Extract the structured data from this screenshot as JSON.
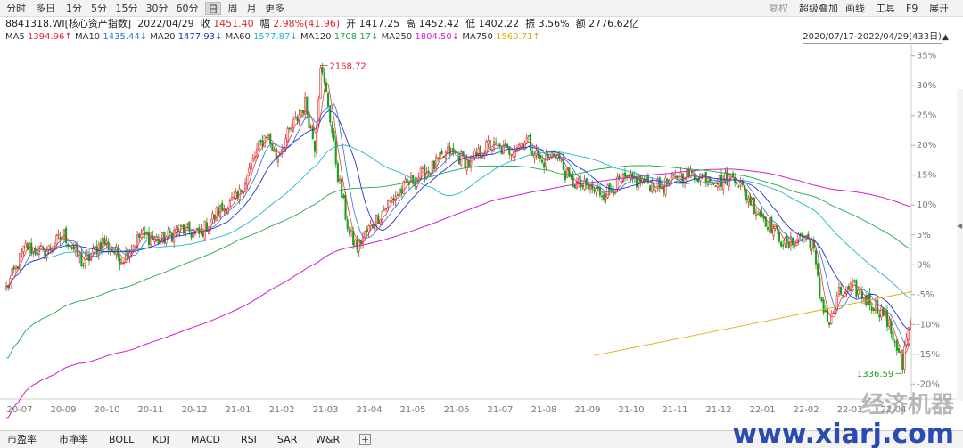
{
  "toolbar": {
    "periods": [
      "分时",
      "多日",
      "1分",
      "5分",
      "15分",
      "30分",
      "60分",
      "日",
      "周",
      "月",
      "更多"
    ],
    "active_period": "日",
    "right_tools": [
      "复权",
      "超级叠加",
      "画线",
      "工具",
      "F9",
      "展开"
    ]
  },
  "info": {
    "code_name": "8841318.WI[核心资产指数]",
    "date": "2022/04/29",
    "close_label": "收",
    "close": "1451.40",
    "change_label": "幅",
    "change": "2.98%(41.96)",
    "open_label": "开",
    "open": "1417.25",
    "high_label": "高",
    "high": "1452.42",
    "low_label": "低",
    "low": "1402.22",
    "amp_label": "振",
    "amp": "3.56%",
    "amount_label": "额",
    "amount": "2776.62亿"
  },
  "ma_legend": [
    {
      "name": "MA5",
      "value": "1394.96",
      "arrow": "↑",
      "color": "#e0262d"
    },
    {
      "name": "MA10",
      "value": "1435.44",
      "arrow": "↓",
      "color": "#2f6fd0"
    },
    {
      "name": "MA20",
      "value": "1477.93",
      "arrow": "↓",
      "color": "#2233cc"
    },
    {
      "name": "MA60",
      "value": "1577.87",
      "arrow": "↓",
      "color": "#1fb7c9"
    },
    {
      "name": "MA120",
      "value": "1708.17",
      "arrow": "↓",
      "color": "#22a84a"
    },
    {
      "name": "MA250",
      "value": "1804.50",
      "arrow": "↓",
      "color": "#cc22cc"
    },
    {
      "name": "MA750",
      "value": "1560.71",
      "arrow": "↑",
      "color": "#e6a817"
    }
  ],
  "range_label": "2020/07/17-2022/04/29(433日)",
  "colors": {
    "up": "#e0262d",
    "down": "#1a9f1a",
    "ma5": "#e0262d",
    "ma10": "#2f6fd0",
    "ma20": "#2233cc",
    "ma60": "#1fb7c9",
    "ma120": "#22a84a",
    "ma250": "#cc22cc",
    "ma750": "#e6a817"
  },
  "chart_data": {
    "type": "line",
    "base_value": 1630,
    "y_unit": "percent change vs. period start",
    "ylim": [
      -21,
      36
    ],
    "y_ticks": [
      "35%",
      "30%",
      "25%",
      "20%",
      "15%",
      "10%",
      "5%",
      "0%",
      "-5%",
      "-10%",
      "-15%",
      "-20%"
    ],
    "y_tick_values": [
      35,
      30,
      25,
      20,
      15,
      10,
      5,
      0,
      -5,
      -10,
      -15,
      -20
    ],
    "x_ticks": [
      "20-07",
      "20-09",
      "20-10",
      "20-11",
      "20-12",
      "21-01",
      "21-02",
      "21-03",
      "21-04",
      "21-05",
      "21-06",
      "21-07",
      "21-08",
      "21-09",
      "21-10",
      "21-11",
      "21-12",
      "22-01",
      "22-02",
      "22-03",
      "22-04"
    ],
    "price_path": [
      [
        0,
        -4
      ],
      [
        10,
        3
      ],
      [
        20,
        2
      ],
      [
        30,
        5
      ],
      [
        40,
        0
      ],
      [
        50,
        4
      ],
      [
        60,
        1
      ],
      [
        70,
        5
      ],
      [
        80,
        4
      ],
      [
        90,
        6
      ],
      [
        100,
        5
      ],
      [
        110,
        9
      ],
      [
        120,
        11
      ],
      [
        130,
        19
      ],
      [
        135,
        22
      ],
      [
        140,
        18
      ],
      [
        150,
        24
      ],
      [
        155,
        27
      ],
      [
        160,
        20
      ],
      [
        163,
        33
      ],
      [
        167,
        27
      ],
      [
        172,
        15
      ],
      [
        178,
        5
      ],
      [
        182,
        3
      ],
      [
        188,
        6
      ],
      [
        200,
        11
      ],
      [
        210,
        14
      ],
      [
        220,
        16
      ],
      [
        230,
        19
      ],
      [
        240,
        17
      ],
      [
        250,
        20
      ],
      [
        260,
        19
      ],
      [
        270,
        21
      ],
      [
        278,
        17
      ],
      [
        285,
        19
      ],
      [
        292,
        14
      ],
      [
        300,
        13
      ],
      [
        310,
        12
      ],
      [
        320,
        14
      ],
      [
        330,
        14
      ],
      [
        340,
        13
      ],
      [
        350,
        15
      ],
      [
        360,
        15
      ],
      [
        370,
        14
      ],
      [
        378,
        15
      ],
      [
        383,
        12
      ],
      [
        390,
        9
      ],
      [
        398,
        6
      ],
      [
        405,
        3
      ],
      [
        412,
        5
      ],
      [
        418,
        4
      ],
      [
        422,
        -5
      ],
      [
        427,
        -10
      ],
      [
        432,
        -5
      ],
      [
        440,
        -4
      ],
      [
        447,
        -6
      ],
      [
        455,
        -8
      ],
      [
        460,
        -12
      ],
      [
        465,
        -16
      ],
      [
        468,
        -11
      ],
      [
        470,
        -10
      ]
    ],
    "total_bars": 470,
    "max_label": "2168.72",
    "max_index": 163,
    "min_label": "1336.59",
    "min_index": 465,
    "ma750_start_index": 305,
    "ma750_path": [
      [
        305,
        -15.2
      ],
      [
        470,
        -4.5
      ]
    ],
    "series": [
      {
        "name": "MA5",
        "period": 5
      },
      {
        "name": "MA10",
        "period": 10
      },
      {
        "name": "MA20",
        "period": 20
      },
      {
        "name": "MA60",
        "period": 60
      },
      {
        "name": "MA120",
        "period": 120
      },
      {
        "name": "MA250",
        "period": 250
      },
      {
        "name": "MA750",
        "period": 750
      }
    ],
    "grid": false
  },
  "bottom_tabs": [
    "市盈率",
    "市净率",
    "BOLL",
    "KDJ",
    "MACD",
    "RSI",
    "SAR",
    "W&R"
  ],
  "add_tab_label": "+",
  "watermark": {
    "top": "经济机器",
    "bottom": "www.xiarj.com"
  }
}
